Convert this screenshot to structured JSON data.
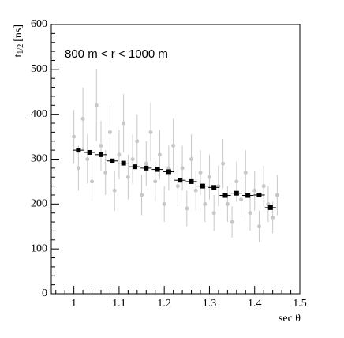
{
  "chart_data": {
    "type": "scatter",
    "annotation": "800 m < r < 1000 m",
    "xlabel": "sec θ",
    "ylabel": {
      "base": "t",
      "sub": "1/2",
      "unit": "[ns]"
    },
    "xlim": [
      0.95,
      1.5
    ],
    "xticks": [
      1,
      1.1,
      1.2,
      1.3,
      1.4,
      1.5
    ],
    "ylim": [
      0,
      600
    ],
    "yticks": [
      0,
      100,
      200,
      300,
      400,
      500,
      600
    ],
    "series": [
      {
        "color": "#c8c8c8",
        "marker": "circle",
        "x": [
          1.0,
          1.01,
          1.02,
          1.03,
          1.04,
          1.05,
          1.06,
          1.07,
          1.08,
          1.09,
          1.1,
          1.11,
          1.12,
          1.13,
          1.14,
          1.15,
          1.16,
          1.17,
          1.18,
          1.19,
          1.2,
          1.21,
          1.22,
          1.23,
          1.24,
          1.25,
          1.26,
          1.27,
          1.28,
          1.29,
          1.3,
          1.31,
          1.32,
          1.33,
          1.34,
          1.35,
          1.36,
          1.37,
          1.38,
          1.39,
          1.4,
          1.41,
          1.42,
          1.43,
          1.44,
          1.45
        ],
        "values": [
          350,
          280,
          390,
          300,
          250,
          420,
          330,
          270,
          360,
          230,
          310,
          380,
          260,
          300,
          340,
          220,
          290,
          360,
          250,
          310,
          200,
          280,
          330,
          240,
          280,
          190,
          300,
          230,
          270,
          200,
          260,
          180,
          240,
          290,
          200,
          160,
          250,
          210,
          270,
          180,
          230,
          150,
          240,
          200,
          170,
          220
        ],
        "errors": [
          60,
          50,
          70,
          55,
          45,
          80,
          55,
          50,
          60,
          45,
          55,
          65,
          50,
          55,
          60,
          45,
          50,
          65,
          45,
          55,
          40,
          50,
          60,
          45,
          50,
          40,
          55,
          45,
          50,
          40,
          50,
          40,
          45,
          55,
          40,
          35,
          45,
          40,
          50,
          40,
          45,
          35,
          45,
          40,
          35,
          45
        ]
      },
      {
        "color": "#000000",
        "marker": "square",
        "x": [
          1.01,
          1.035,
          1.06,
          1.085,
          1.11,
          1.135,
          1.16,
          1.185,
          1.21,
          1.235,
          1.26,
          1.285,
          1.31,
          1.335,
          1.36,
          1.385,
          1.41,
          1.435
        ],
        "values": [
          320,
          315,
          310,
          296,
          291,
          283,
          280,
          277,
          272,
          253,
          250,
          240,
          237,
          219,
          224,
          219,
          220,
          192
        ],
        "xerr": 0.0125
      }
    ]
  }
}
